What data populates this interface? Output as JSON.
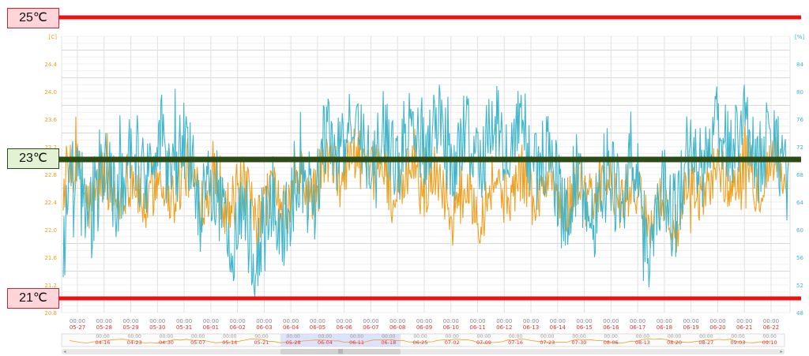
{
  "callouts": {
    "top": "25℃",
    "middle": "23℃",
    "bottom": "21℃"
  },
  "colors": {
    "temperature": "#f0a020",
    "humidity": "#3fb6cc",
    "limit_line": "#ee1111",
    "target_line": "#2b4a14",
    "axis_date": "#dd3333",
    "navigator_fill": "#ccd4ff"
  },
  "chart_data": {
    "type": "line",
    "yleft": {
      "unit": "[C]",
      "ticks": [
        "24.4",
        "24.0",
        "23.6",
        "23.2",
        "22.8",
        "22.4",
        "22.0",
        "21.6",
        "21.2",
        "20.8"
      ],
      "range": [
        20.8,
        24.8
      ]
    },
    "yright": {
      "unit": "[%]",
      "ticks": [
        "84",
        "80",
        "76",
        "72",
        "68",
        "64",
        "60",
        "56",
        "52",
        "48"
      ],
      "range": [
        48,
        88
      ]
    },
    "x_time_label": "00:00",
    "x_dates": [
      "05-27",
      "05-28",
      "05-29",
      "05-30",
      "05-31",
      "06-01",
      "06-02",
      "06-03",
      "06-04",
      "06-05",
      "06-06",
      "06-07",
      "06-08",
      "06-09",
      "06-10",
      "06-11",
      "06-12",
      "06-13",
      "06-14",
      "06-15",
      "06-16",
      "06-17",
      "06-18",
      "06-19",
      "06-20",
      "06-21",
      "06-22"
    ],
    "reference_lines": [
      {
        "label": "25℃",
        "value": 25.0
      },
      {
        "label": "23℃",
        "value": 23.0
      },
      {
        "label": "21℃",
        "value": 21.0
      }
    ],
    "series": [
      {
        "daily_center": [
          22.8,
          22.55,
          22.65,
          22.5,
          22.7,
          22.65,
          22.5,
          22.3,
          22.45,
          22.7,
          22.95,
          22.95,
          22.55,
          22.8,
          22.4,
          22.45,
          22.65,
          22.6,
          22.45,
          22.6,
          22.55,
          22.3,
          22.15,
          22.7,
          22.8,
          22.8,
          22.9
        ],
        "daily_range": [
          0.55,
          0.6,
          0.6,
          0.55,
          0.6,
          0.6,
          0.65,
          0.55,
          0.55,
          0.6,
          0.55,
          0.55,
          0.6,
          0.6,
          0.6,
          0.6,
          0.55,
          0.55,
          0.6,
          0.55,
          0.55,
          0.55,
          0.55,
          0.5,
          0.55,
          0.55,
          0.5
        ],
        "min": 21.1,
        "max": 23.65
      },
      {
        "daily_center": [
          62,
          65,
          68,
          71,
          72,
          66,
          61,
          58,
          64,
          68,
          74,
          73,
          72,
          75,
          72,
          72,
          74,
          71,
          65,
          64,
          69,
          60,
          66,
          72,
          74,
          73,
          70
        ],
        "daily_range": [
          10,
          10,
          9,
          8,
          9,
          9,
          9,
          9,
          9,
          9,
          7,
          7,
          8,
          8,
          8,
          8,
          8,
          8,
          9,
          8,
          9,
          10,
          9,
          8,
          8,
          9,
          8
        ],
        "min": 50,
        "max": 81
      }
    ],
    "navigator": {
      "dates": [
        "04-16",
        "04-23",
        "04-30",
        "05-07",
        "05-14",
        "05-21",
        "05-28",
        "06-04",
        "06-11",
        "06-18",
        "06-25",
        "07-02",
        "07-09",
        "07-16",
        "07-23",
        "07-30",
        "08-06",
        "08-13",
        "08-20",
        "08-27",
        "09-03",
        "09-10"
      ],
      "selected_from": "05-27",
      "selected_to": "06-22"
    }
  },
  "scrollbar": {
    "thumb_label": "|||",
    "left_arrow": "◂",
    "right_arrow": "▸"
  }
}
